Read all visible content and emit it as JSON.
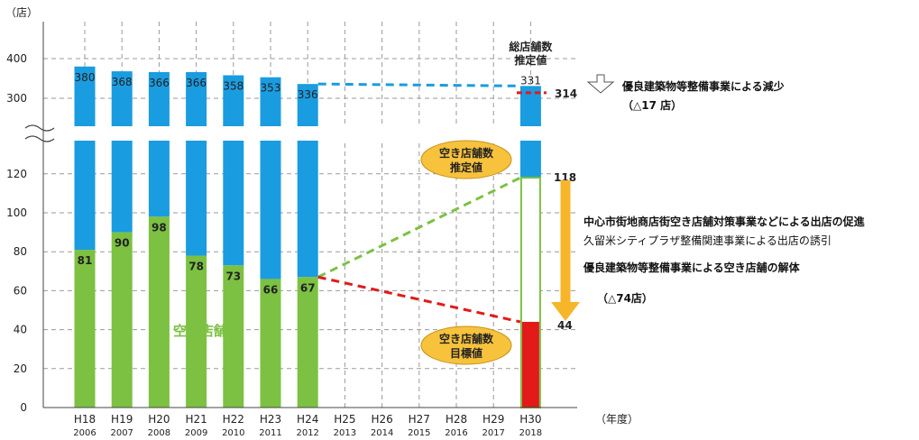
{
  "chart_data": {
    "type": "bar",
    "stacked": true,
    "y_unit": "（店）",
    "x_unit": "（年度）",
    "y_ticks_lower": [
      0,
      20,
      40,
      60,
      80,
      100,
      120
    ],
    "y_ticks_upper": [
      300,
      400
    ],
    "axis_break": "between 120 and 300",
    "grid": true,
    "categories": [
      {
        "label": "H18",
        "year": "2006"
      },
      {
        "label": "H19",
        "year": "2007"
      },
      {
        "label": "H20",
        "year": "2008"
      },
      {
        "label": "H21",
        "year": "2009"
      },
      {
        "label": "H22",
        "year": "2010"
      },
      {
        "label": "H23",
        "year": "2011"
      },
      {
        "label": "H24",
        "year": "2012"
      },
      {
        "label": "H25",
        "year": "2013"
      },
      {
        "label": "H26",
        "year": "2014"
      },
      {
        "label": "H27",
        "year": "2015"
      },
      {
        "label": "H28",
        "year": "2016"
      },
      {
        "label": "H29",
        "year": "2017"
      },
      {
        "label": "H30",
        "year": "2018"
      }
    ],
    "series": [
      {
        "name": "空き店舗数",
        "color": "#7cc142",
        "values": [
          81,
          90,
          98,
          78,
          73,
          66,
          67,
          null,
          null,
          null,
          null,
          null,
          null
        ]
      },
      {
        "name": "",
        "color": "#1a9ce0",
        "values": [
          380,
          368,
          366,
          366,
          358,
          353,
          336,
          null,
          null,
          null,
          null,
          null,
          331
        ]
      }
    ],
    "h30": {
      "total_estimate": 331,
      "total_after": 314,
      "vacant_estimate": 118,
      "vacant_target": 44,
      "target_color": "#e21a1a"
    },
    "labels": {
      "total_header_1": "総店舗数",
      "total_header_2": "推定値",
      "vacant_est_1": "空き店舗数",
      "vacant_est_2": "推定値",
      "target_1": "空き店舗数",
      "target_2": "目標値",
      "series_label": "空き店舗数"
    },
    "annotations": {
      "decrease_1": "優良建築物等整備事業による減少",
      "decrease_2": "（△17 店）",
      "measure_1": "中心市街地商店街空き店舗対策事業などによる出店の促進",
      "measure_2": "久留米シティプラザ整備関連事業による出店の誘引",
      "measure_3": "優良建築物等整備事業による空き店舗の解体",
      "measure_4": "（△74店）"
    },
    "colors": {
      "vacant": "#7cc142",
      "total": "#1a9ce0",
      "target": "#e21a1a",
      "bubble": "#f7c23c",
      "arrow": "#f7b52a",
      "blue_dash": "#1a9ce0",
      "green_dash": "#7cc142",
      "red_dash": "#e21a1a"
    }
  }
}
